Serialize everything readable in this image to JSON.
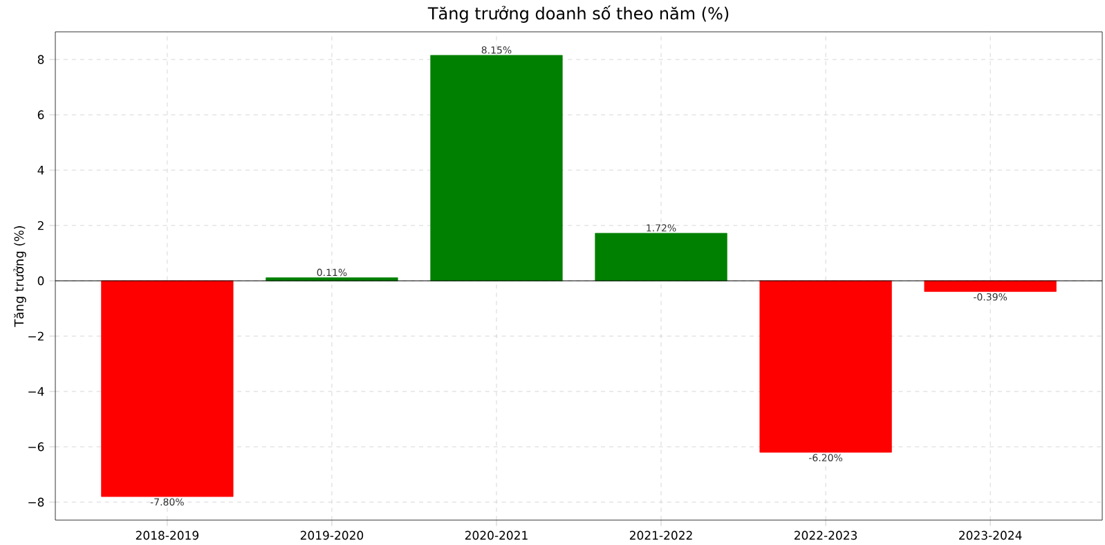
{
  "chart_data": {
    "type": "bar",
    "title": "Tăng trưởng doanh số theo năm (%)",
    "ylabel": "Tăng trưởng (%)",
    "categories": [
      "2018-2019",
      "2019-2020",
      "2020-2021",
      "2021-2022",
      "2022-2023",
      "2023-2024"
    ],
    "values": [
      -7.8,
      0.11,
      8.15,
      1.72,
      -6.2,
      -0.39
    ],
    "colors": [
      "#ff0000",
      "#008000",
      "#008000",
      "#008000",
      "#ff0000",
      "#ff0000"
    ],
    "value_labels": [
      "-7.80%",
      "0.11%",
      "8.15%",
      "1.72%",
      "-6.20%",
      "-0.39%"
    ],
    "ylim": [
      -8.65,
      9.0
    ],
    "yticks": [
      {
        "value": -8,
        "label": "−8"
      },
      {
        "value": -6,
        "label": "−6"
      },
      {
        "value": -4,
        "label": "−4"
      },
      {
        "value": -2,
        "label": "−2"
      },
      0,
      2,
      4,
      6,
      8
    ],
    "ref_lines": [
      {
        "axis": "y",
        "value": 0,
        "color": "#000000"
      }
    ],
    "grid": true
  }
}
